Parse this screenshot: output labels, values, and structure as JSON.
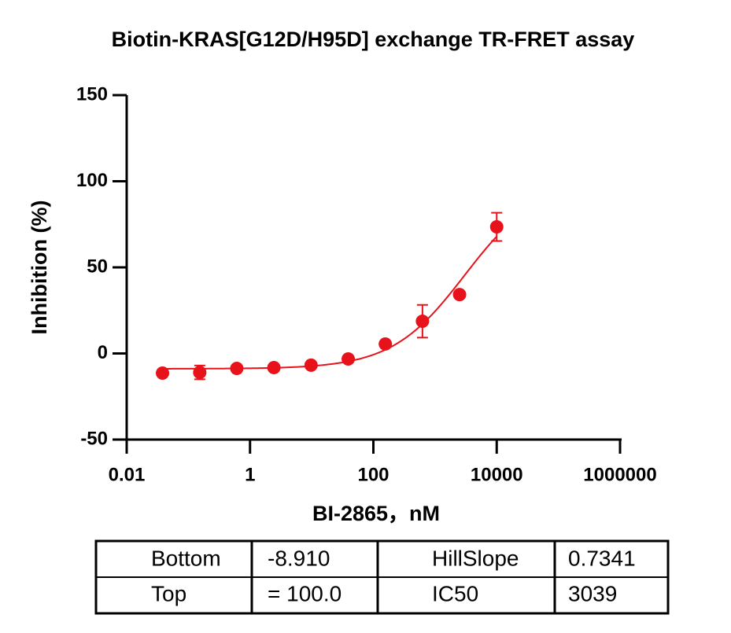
{
  "chart_data": {
    "type": "scatter",
    "title": "Biotin-KRAS[G12D/H95D] exchange TR-FRET assay",
    "x_label": "BI-2865，nM",
    "y_label": "Inhibition (%)",
    "x": [
      0.0381,
      0.153,
      0.61,
      2.44,
      9.77,
      39.1,
      156.25,
      625,
      2500,
      10000
    ],
    "values": [
      -11.4,
      -11,
      -8.7,
      -8.2,
      -6.8,
      -3.2,
      5.5,
      18.7,
      34.2,
      73.5
    ],
    "errors": [
      null,
      4,
      null,
      null,
      null,
      null,
      null,
      9.5,
      null,
      8.2
    ],
    "color": "#e8131a",
    "x_scale": "log",
    "grid": false,
    "xlim": [
      0.01,
      1000000
    ],
    "xticks": [
      0.01,
      1,
      100,
      10000,
      1000000
    ],
    "ylim": [
      -50,
      150
    ],
    "yticks": [
      -50,
      0,
      50,
      100,
      150
    ]
  },
  "table": {
    "rows": [
      [
        "Bottom",
        "-8.910",
        "HillSlope",
        "0.7341"
      ],
      [
        "Top",
        "= 100.0",
        "IC50",
        "3039"
      ]
    ]
  }
}
